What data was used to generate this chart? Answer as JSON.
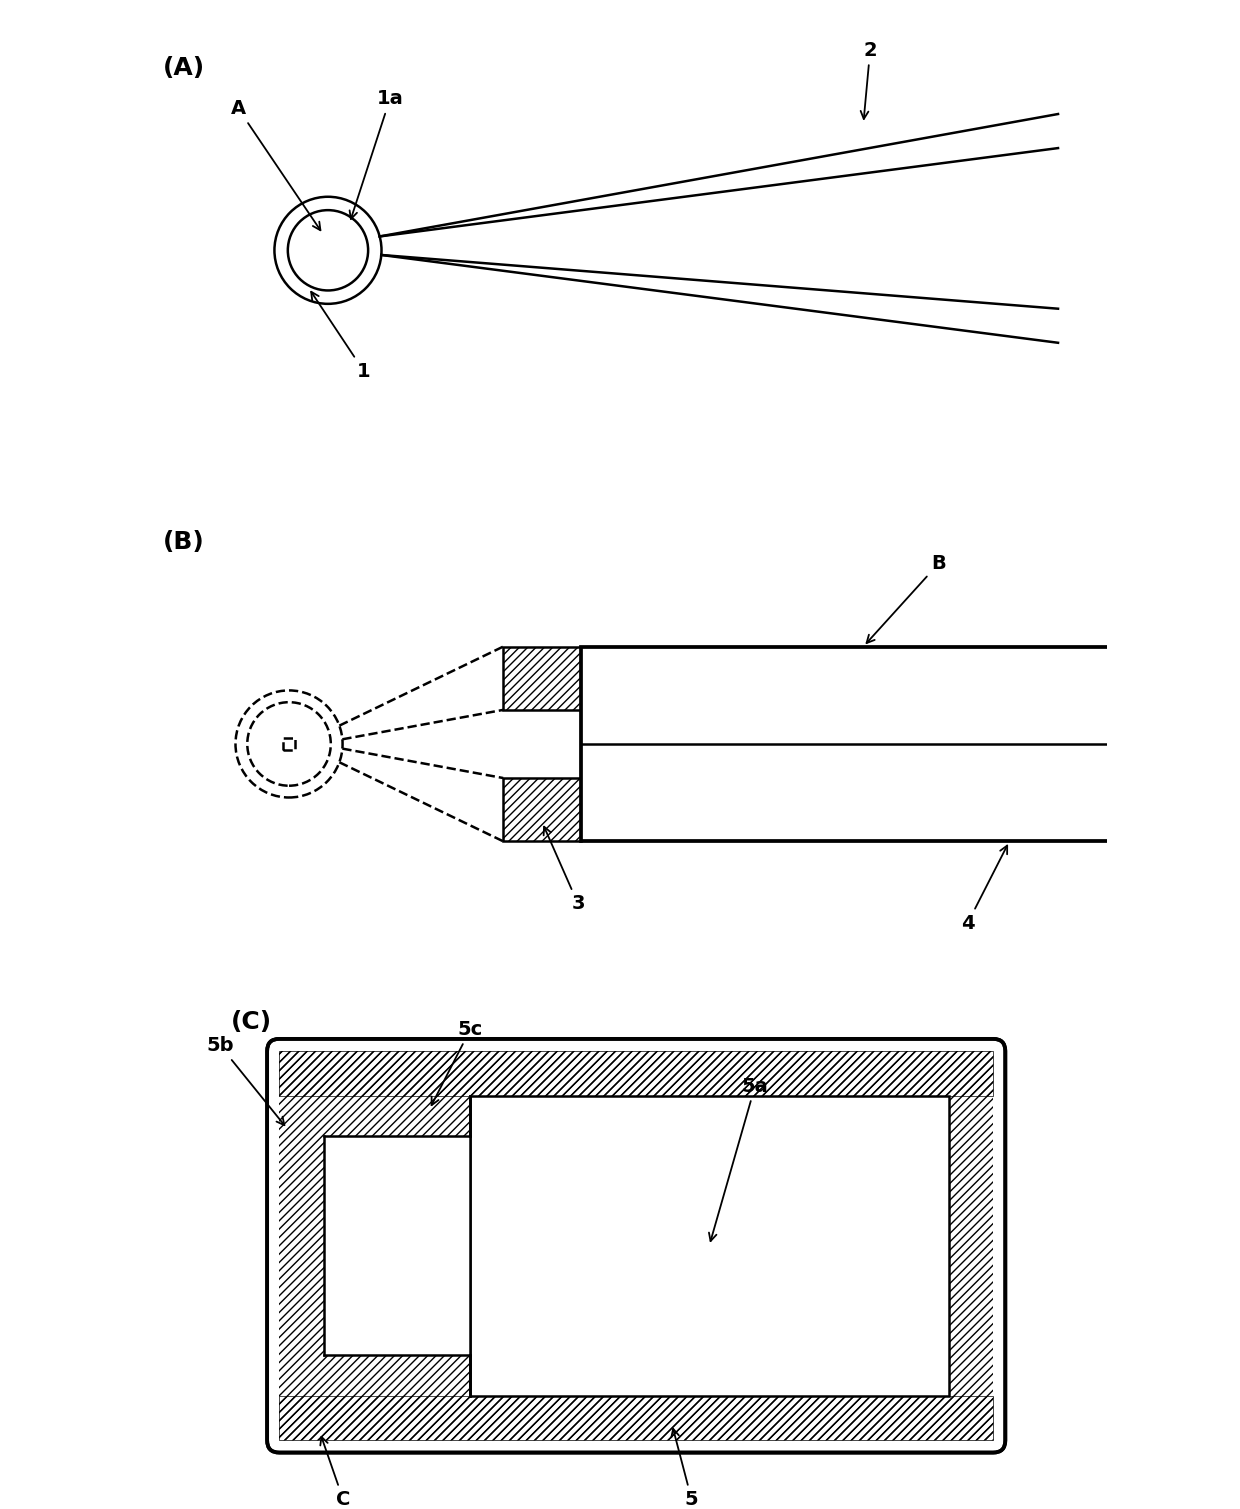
{
  "bg_color": "#ffffff",
  "line_color": "#000000",
  "hatch_color": "#000000",
  "label_A": "(A)",
  "label_B": "(B)",
  "label_C": "(C)",
  "fig_width": 12.4,
  "fig_height": 15.09
}
